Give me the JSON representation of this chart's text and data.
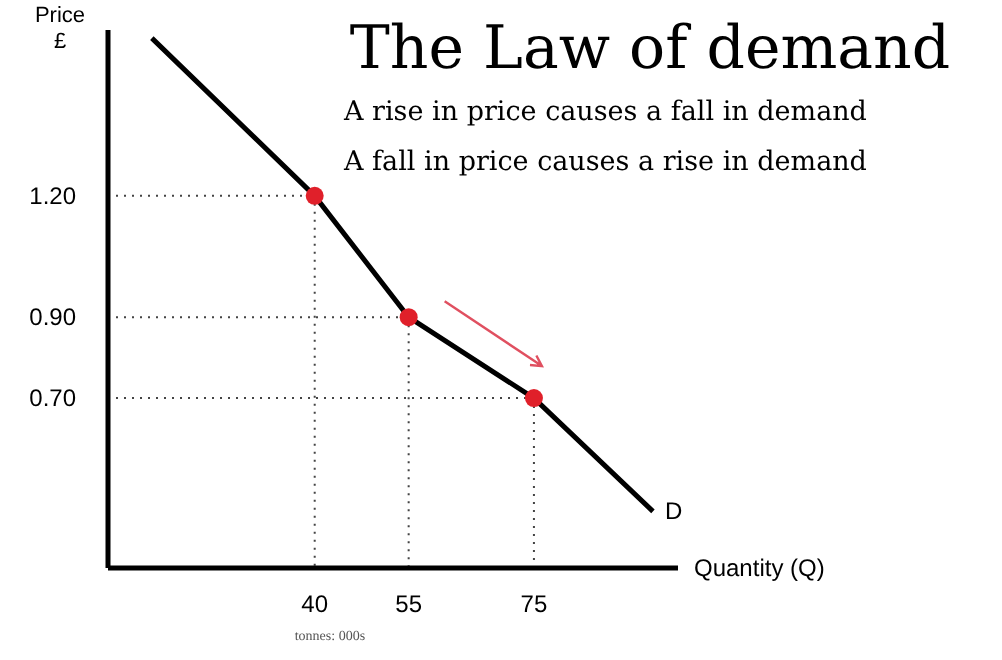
{
  "chart_data": {
    "type": "line",
    "title": "The Law of demand",
    "xlabel": "Quantity (Q)",
    "ylabel": "Price\n£",
    "annotations": [
      "A rise in price causes a fall in demand",
      "A fall in price causes a rise in demand",
      "tonnes: 000s"
    ],
    "xlim": [
      7,
      98
    ],
    "ylim": [
      0.28,
      1.61
    ],
    "xticks": [
      40,
      55,
      75
    ],
    "yticks": [
      {
        "value": 0.7,
        "label": "0.70"
      },
      {
        "value": 0.9,
        "label": "0.90"
      },
      {
        "value": 1.2,
        "label": "1.20"
      }
    ],
    "grid": false,
    "series": [
      {
        "name": "D",
        "color": "#000000",
        "marker": "none",
        "x": [
          14,
          40,
          55,
          75,
          94
        ],
        "values": [
          1.59,
          1.2,
          0.9,
          0.7,
          0.42
        ]
      },
      {
        "type": "scatter",
        "color": "#e0202a",
        "marker": "circle",
        "x": [
          40,
          55,
          75
        ],
        "values": [
          1.2,
          0.9,
          0.7
        ]
      }
    ]
  }
}
